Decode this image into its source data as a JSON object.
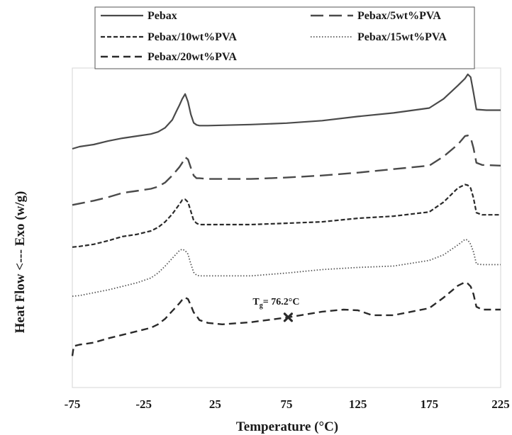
{
  "chart_data": {
    "type": "line",
    "xlabel": "Temperature (°C)",
    "ylabel": "Heat Flow <--- Exo (w/g)",
    "xlim": [
      -75,
      225
    ],
    "xticks": [
      -75,
      -25,
      25,
      75,
      125,
      175,
      225
    ],
    "grid": false,
    "legend_position": "top",
    "series": [
      {
        "name": "Pebax",
        "style": "solid",
        "color": "#4a4a4a",
        "x": [
          -75,
          -70,
          -60,
          -50,
          -40,
          -30,
          -20,
          -15,
          -10,
          -5,
          -2,
          0,
          2,
          4,
          6,
          8,
          10,
          12,
          14,
          20,
          30,
          50,
          75,
          100,
          125,
          150,
          175,
          185,
          195,
          200,
          202,
          204,
          206,
          208,
          215,
          225
        ],
        "y": [
          0,
          3,
          6,
          11,
          15,
          18,
          21,
          24,
          30,
          41,
          54,
          62,
          71,
          78,
          67,
          49,
          37,
          34,
          33,
          33,
          33.5,
          34.5,
          36.5,
          40,
          46,
          51,
          58,
          71,
          90,
          100,
          106,
          102,
          80,
          56,
          55,
          55
        ]
      },
      {
        "name": "Pebax/5wt%PVA",
        "style": "long-dash",
        "color": "#4a4a4a",
        "x": [
          -75,
          -70,
          -60,
          -50,
          -40,
          -30,
          -20,
          -15,
          -10,
          -5,
          0,
          2,
          4,
          6,
          8,
          10,
          12,
          14,
          20,
          30,
          50,
          75,
          100,
          125,
          150,
          175,
          185,
          195,
          200,
          202,
          204,
          206,
          208,
          212,
          225
        ],
        "y": [
          -80,
          -78,
          -74,
          -69,
          -63,
          -60,
          -57,
          -54,
          -48,
          -38,
          -26,
          -20,
          -12,
          -15,
          -27,
          -38,
          -42,
          -42,
          -43,
          -43,
          -43,
          -41,
          -38,
          -34,
          -29,
          -24,
          -11,
          6,
          18,
          19,
          16,
          1,
          -20,
          -23,
          -24
        ]
      },
      {
        "name": "Pebax/10wt%PVA",
        "style": "short-dash",
        "color": "#2a2a2a",
        "x": [
          -75,
          -70,
          -60,
          -50,
          -40,
          -30,
          -20,
          -15,
          -10,
          -5,
          0,
          2,
          4,
          6,
          8,
          10,
          12,
          14,
          20,
          30,
          50,
          75,
          100,
          125,
          150,
          175,
          185,
          195,
          200,
          202,
          204,
          206,
          208,
          212,
          225
        ],
        "y": [
          -140,
          -139,
          -136,
          -131,
          -125,
          -122,
          -117,
          -112,
          -104,
          -93,
          -79,
          -73,
          -72,
          -76,
          -89,
          -102,
          -106,
          -108,
          -108,
          -108,
          -108,
          -106,
          -104,
          -99,
          -96,
          -90,
          -76,
          -56,
          -51,
          -52,
          -56,
          -70,
          -91,
          -94,
          -94
        ]
      },
      {
        "name": "Pebax/15wt%PVA",
        "style": "dotted",
        "color": "#555555",
        "x": [
          -75,
          -70,
          -60,
          -50,
          -40,
          -30,
          -20,
          -15,
          -10,
          -5,
          0,
          2,
          4,
          6,
          8,
          10,
          12,
          14,
          20,
          30,
          50,
          75,
          100,
          125,
          150,
          175,
          185,
          195,
          200,
          202,
          204,
          206,
          208,
          212,
          225
        ],
        "y": [
          -210,
          -209,
          -205,
          -201,
          -196,
          -191,
          -184,
          -177,
          -167,
          -156,
          -145,
          -143,
          -145,
          -150,
          -164,
          -176,
          -180,
          -181,
          -181,
          -181,
          -181,
          -177,
          -172,
          -169,
          -167,
          -159,
          -151,
          -137,
          -129,
          -130,
          -136,
          -147,
          -164,
          -165,
          -165
        ]
      },
      {
        "name": "Pebax/20wt%PVA",
        "style": "medium-dash",
        "color": "#2a2a2a",
        "x": [
          -75,
          -74,
          -70,
          -60,
          -50,
          -40,
          -30,
          -20,
          -15,
          -10,
          -5,
          0,
          2,
          4,
          6,
          8,
          10,
          12,
          14,
          20,
          30,
          50,
          76.2,
          100,
          115,
          125,
          135,
          150,
          175,
          185,
          195,
          200,
          202,
          204,
          206,
          208,
          212,
          225
        ],
        "y": [
          -295,
          -281,
          -279,
          -276,
          -270,
          -265,
          -260,
          -255,
          -250,
          -242,
          -231,
          -220,
          -215,
          -212,
          -214,
          -223,
          -233,
          -238,
          -244,
          -248,
          -250,
          -247,
          -240,
          -232,
          -229,
          -230,
          -237,
          -237,
          -227,
          -212,
          -195,
          -190,
          -192,
          -196,
          -207,
          -225,
          -229,
          -229
        ]
      }
    ],
    "annotations": [
      {
        "marker": "x",
        "x": 76.2,
        "series": "Pebax/20wt%PVA",
        "label_main": "T",
        "label_sub": "g",
        "label_rest": "= 76.2°C"
      }
    ]
  }
}
